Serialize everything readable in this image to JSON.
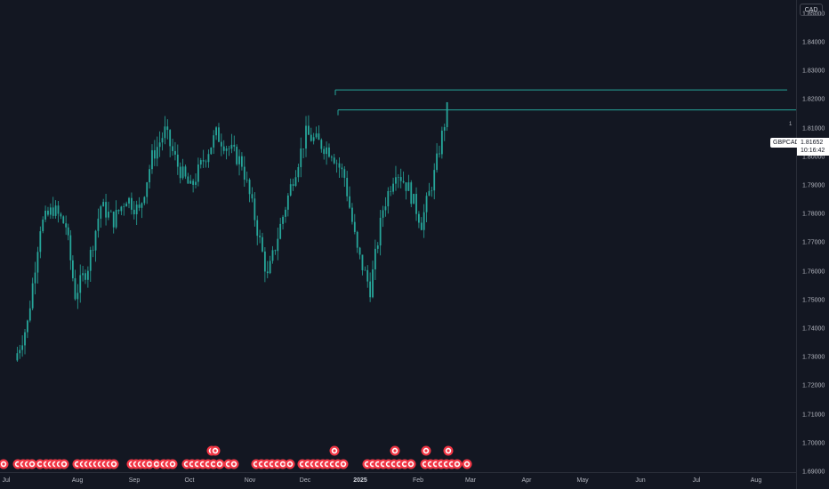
{
  "symbol": "GBPCAD",
  "currency": "CAD",
  "last_price": "1.81652",
  "countdown": "10:16:42",
  "level_label": "1",
  "colors": {
    "background": "#131722",
    "candle": "#26a69a",
    "level_line": "#26a69a",
    "event_marker": "#f23645",
    "axis_text": "#b2b5be"
  },
  "price_axis": {
    "labels": [
      "1.86000",
      "1.85000",
      "1.84000",
      "1.83000",
      "1.82000",
      "1.81000",
      "1.80000",
      "1.79000",
      "1.78000",
      "1.77000",
      "1.76000",
      "1.75000",
      "1.74000",
      "1.73000",
      "1.72000",
      "1.71000",
      "1.70000",
      "1.69000"
    ]
  },
  "time_axis": {
    "labels": [
      "Jul",
      "Aug",
      "Sep",
      "Oct",
      "Nov",
      "Dec",
      "2025",
      "Feb",
      "Mar",
      "Apr",
      "May",
      "Jun",
      "Jul",
      "Aug"
    ]
  },
  "event_marker_icon": "economic-event-icon",
  "chart_data": {
    "type": "candlestick",
    "symbol": "GBPCAD",
    "ylim": [
      1.69,
      1.865
    ],
    "series": [
      {
        "x": [
          "2024-07-03",
          "2024-07-10",
          "2024-07-17",
          "2024-07-24",
          "2024-07-31",
          "2024-08-05",
          "2024-08-12",
          "2024-08-19",
          "2024-08-26",
          "2024-09-02",
          "2024-09-09",
          "2024-09-16",
          "2024-09-23",
          "2024-09-30",
          "2024-10-07",
          "2024-10-14",
          "2024-10-21",
          "2024-10-28",
          "2024-11-04",
          "2024-11-11",
          "2024-11-18",
          "2024-11-25",
          "2024-12-02",
          "2024-12-09",
          "2024-12-16",
          "2024-12-23",
          "2024-12-30",
          "2025-01-06",
          "2025-01-13",
          "2025-01-20",
          "2025-01-27",
          "2025-02-03",
          "2025-02-10",
          "2025-02-17",
          "2025-02-24"
        ],
        "close": [
          1.729,
          1.742,
          1.776,
          1.782,
          1.776,
          1.752,
          1.762,
          1.783,
          1.778,
          1.786,
          1.781,
          1.8,
          1.809,
          1.797,
          1.789,
          1.799,
          1.808,
          1.803,
          1.798,
          1.779,
          1.758,
          1.776,
          1.793,
          1.808,
          1.805,
          1.802,
          1.793,
          1.767,
          1.754,
          1.782,
          1.796,
          1.789,
          1.777,
          1.794,
          1.8165
        ]
      }
    ],
    "horizontal_levels": [
      1.8235,
      1.8165
    ]
  }
}
